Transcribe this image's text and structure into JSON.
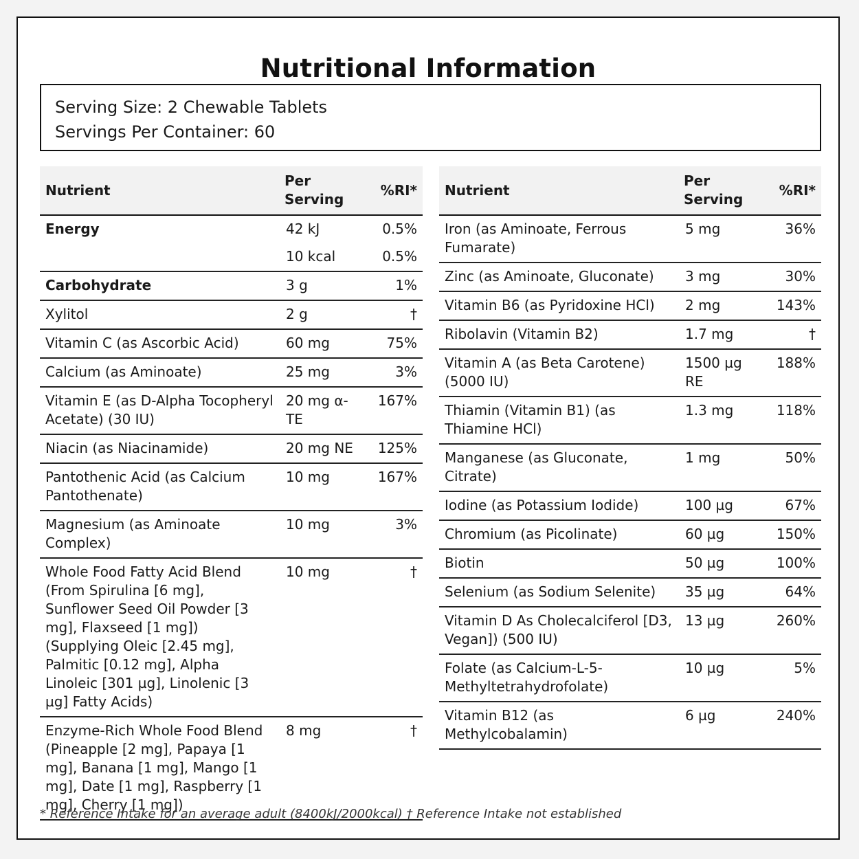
{
  "title": "Nutritional Information",
  "serving": {
    "size": "Serving Size: 2 Chewable Tablets",
    "per_container": "Servings Per Container: 60"
  },
  "headers": {
    "nutrient": "Nutrient",
    "per_serving": "Per Serving",
    "ri": "%RI*"
  },
  "left_rows": [
    {
      "nutrient": "Energy",
      "amount": "42 kJ",
      "ri": "0.5%",
      "bold": true
    },
    {
      "nutrient": "",
      "amount": "10 kcal",
      "ri": "0.5%",
      "bold": false
    },
    {
      "nutrient": "Carbohydrate",
      "amount": "3 g",
      "ri": "1%",
      "bold": true
    },
    {
      "nutrient": "Xylitol",
      "amount": "2 g",
      "ri": "†",
      "bold": false
    },
    {
      "nutrient": "Vitamin C (as Ascorbic Acid)",
      "amount": "60 mg",
      "ri": "75%",
      "bold": false
    },
    {
      "nutrient": "Calcium (as Aminoate)",
      "amount": "25 mg",
      "ri": "3%",
      "bold": false
    },
    {
      "nutrient": "Vitamin E (as D-Alpha Tocopheryl Acetate) (30 IU)",
      "amount": "20 mg α-TE",
      "ri": "167%",
      "bold": false
    },
    {
      "nutrient": "Niacin (as Niacinamide)",
      "amount": "20 mg NE",
      "ri": "125%",
      "bold": false
    },
    {
      "nutrient": "Pantothenic Acid (as Calcium Pantothenate)",
      "amount": "10 mg",
      "ri": "167%",
      "bold": false
    },
    {
      "nutrient": "Magnesium (as Aminoate Complex)",
      "amount": "10 mg",
      "ri": "3%",
      "bold": false
    },
    {
      "nutrient": "Whole Food Fatty Acid Blend (From Spirulina [6 mg], Sunflower Seed Oil Powder [3 mg], Flaxseed [1 mg]) (Supplying Oleic [2.45 mg], Palmitic [0.12 mg], Alpha Linoleic [301 µg], Linolenic [3 µg] Fatty Acids)",
      "amount": "10 mg",
      "ri": "†",
      "bold": false
    },
    {
      "nutrient": "Enzyme-Rich Whole Food Blend (Pineapple [2 mg], Papaya [1 mg], Banana [1 mg], Mango [1 mg], Date [1 mg], Raspberry [1 mg], Cherry [1 mg])",
      "amount": "8 mg",
      "ri": "†",
      "bold": false
    }
  ],
  "right_rows": [
    {
      "nutrient": "Iron (as Aminoate, Ferrous Fumarate)",
      "amount": "5 mg",
      "ri": "36%"
    },
    {
      "nutrient": "Zinc (as Aminoate, Gluconate)",
      "amount": "3 mg",
      "ri": "30%"
    },
    {
      "nutrient": "Vitamin B6 (as Pyridoxine HCl)",
      "amount": "2 mg",
      "ri": "143%"
    },
    {
      "nutrient": "Ribolavin (Vitamin B2)",
      "amount": "1.7 mg",
      "ri": "†"
    },
    {
      "nutrient": "Vitamin A (as Beta Carotene) (5000 IU)",
      "amount": "1500 µg RE",
      "ri": "188%"
    },
    {
      "nutrient": "Thiamin (Vitamin B1) (as Thiamine HCl)",
      "amount": "1.3 mg",
      "ri": "118%"
    },
    {
      "nutrient": "Manganese (as Gluconate, Citrate)",
      "amount": "1 mg",
      "ri": "50%"
    },
    {
      "nutrient": "Iodine (as Potassium Iodide)",
      "amount": "100 µg",
      "ri": "67%"
    },
    {
      "nutrient": "Chromium (as Picolinate)",
      "amount": "60 µg",
      "ri": "150%"
    },
    {
      "nutrient": "Biotin",
      "amount": "50 µg",
      "ri": "100%"
    },
    {
      "nutrient": "Selenium (as Sodium Selenite)",
      "amount": "35 µg",
      "ri": "64%"
    },
    {
      "nutrient": "Vitamin D As Cholecalciferol [D3, Vegan]) (500 IU)",
      "amount": "13 µg",
      "ri": "260%"
    },
    {
      "nutrient": "Folate (as Calcium-L-5-Methyltetrahydrofolate)",
      "amount": "10 µg",
      "ri": "5%"
    },
    {
      "nutrient": "Vitamin B12 (as Methylcobalamin)",
      "amount": "6 µg",
      "ri": "240%"
    }
  ],
  "footnote": "* Reference Intake for an average adult (8400kJ/2000kcal) † Reference Intake not established"
}
